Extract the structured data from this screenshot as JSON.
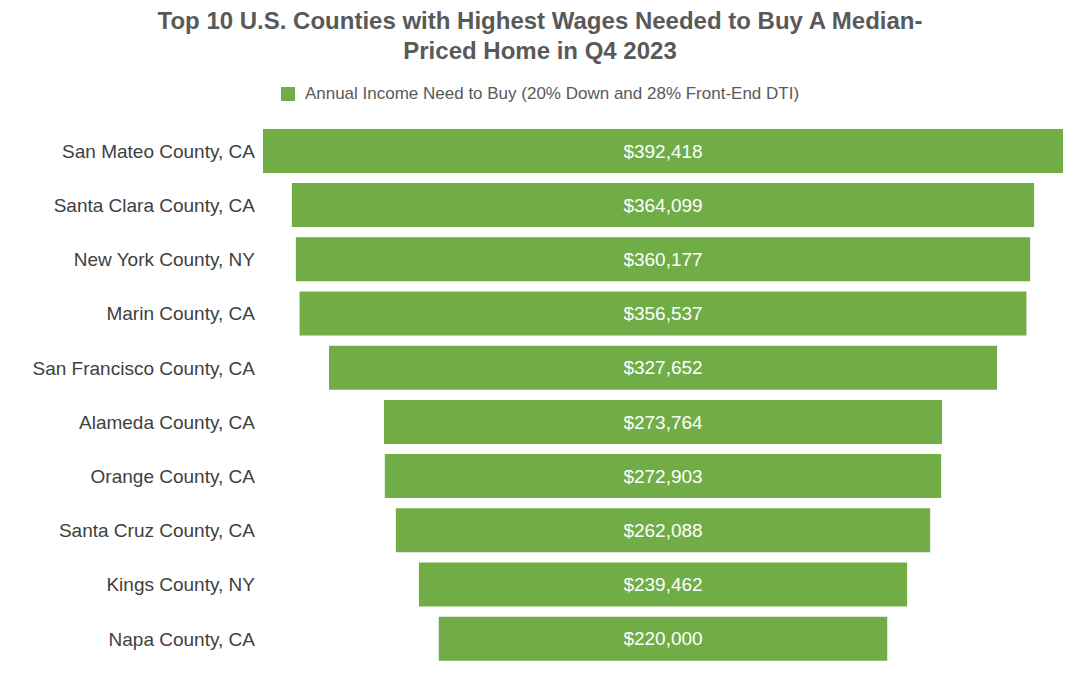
{
  "chart_data": {
    "type": "bar",
    "title": "Top 10 U.S. Counties with Highest Wages Needed to Buy A Median-Priced Home in Q4 2023",
    "orientation": "horizontal",
    "categories": [
      "San Mateo County, CA",
      "Santa Clara County, CA",
      "New York County, NY",
      "Marin County, CA",
      "San Francisco County, CA",
      "Alameda County, CA",
      "Orange County, CA",
      "Santa Cruz County, CA",
      "Kings County, NY",
      "Napa County, CA"
    ],
    "series": [
      {
        "name": "Annual Income Need to Buy (20% Down and 28% Front-End DTI)",
        "color": "#70ad47",
        "values": [
          392418,
          364099,
          360177,
          356537,
          327652,
          273764,
          272903,
          262088,
          239462,
          220000
        ],
        "value_labels": [
          "$392,418",
          "$364,099",
          "$360,177",
          "$356,537",
          "$327,652",
          "$273,764",
          "$272,903",
          "$262,088",
          "$239,462",
          "$220,000"
        ]
      }
    ],
    "data_labels": true,
    "tick_labels": "y",
    "legend": "top",
    "grid": false
  }
}
